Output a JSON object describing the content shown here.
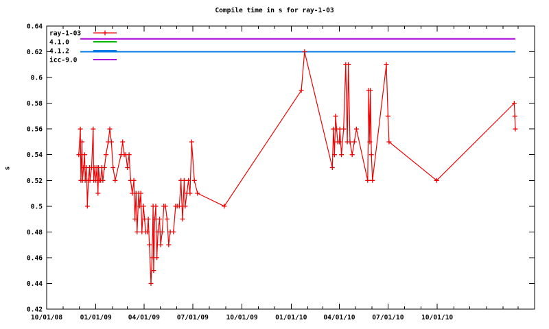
{
  "title": "Compile time in s for ray-1-03",
  "chart_data": {
    "type": "line",
    "title": "Compile time in s for ray-1-03",
    "xlabel": "",
    "ylabel": "s",
    "ylim": [
      0.42,
      0.64
    ],
    "y_tick_step": 0.02,
    "y_ticks": [
      {
        "value": 0.64,
        "label": "0.64"
      },
      {
        "value": 0.62,
        "label": "0.62"
      },
      {
        "value": 0.6,
        "label": "0.6"
      },
      {
        "value": 0.58,
        "label": "0.58"
      },
      {
        "value": 0.56,
        "label": "0.56"
      },
      {
        "value": 0.54,
        "label": "0.54"
      },
      {
        "value": 0.52,
        "label": "0.52"
      },
      {
        "value": 0.5,
        "label": "0.5"
      },
      {
        "value": 0.48,
        "label": "0.48"
      },
      {
        "value": 0.46,
        "label": "0.46"
      },
      {
        "value": 0.44,
        "label": "0.44"
      },
      {
        "value": 0.42,
        "label": "0.42"
      }
    ],
    "x_axis_unit": "days since first labeled tick (10/01/08)",
    "x_range_days": 912,
    "x_major_ticks": [
      {
        "day": 0,
        "label": "10/01/08"
      },
      {
        "day": 92,
        "label": "01/01/09"
      },
      {
        "day": 182,
        "label": "04/01/09"
      },
      {
        "day": 273,
        "label": "07/01/09"
      },
      {
        "day": 365,
        "label": "10/01/09"
      },
      {
        "day": 457,
        "label": "01/01/10"
      },
      {
        "day": 547,
        "label": "04/01/10"
      },
      {
        "day": 638,
        "label": "07/01/10"
      },
      {
        "day": 730,
        "label": "10/01/10"
      }
    ],
    "x_minor_tick_days": [
      31,
      61,
      123,
      151,
      212,
      243,
      304,
      335,
      396,
      426,
      488,
      516,
      577,
      608,
      669,
      700,
      761,
      791,
      822,
      853,
      881
    ],
    "grid": false,
    "legend_position": "top-left",
    "axis_color": "#000000",
    "background_color": "#ffffff",
    "series": [
      {
        "name": "4.1.0",
        "color": "#00b800",
        "style": "line",
        "points": [
          [
            63,
            0.62
          ],
          [
            876,
            0.62
          ]
        ]
      },
      {
        "name": "4.1.2",
        "color": "#0078e8",
        "style": "line",
        "points": [
          [
            63,
            0.62
          ],
          [
            876,
            0.62
          ]
        ]
      },
      {
        "name": "icc-9.0",
        "color": "#a800d8",
        "style": "line",
        "points": [
          [
            63,
            0.63
          ],
          [
            876,
            0.63
          ]
        ]
      },
      {
        "name": "ray-1-03",
        "color": "#ee0000",
        "style": "linespoints",
        "marker": "plus",
        "points": [
          [
            60,
            0.54
          ],
          [
            63,
            0.56
          ],
          [
            64,
            0.52
          ],
          [
            66,
            0.55
          ],
          [
            67,
            0.52
          ],
          [
            69,
            0.53
          ],
          [
            71,
            0.54
          ],
          [
            72,
            0.52
          ],
          [
            74,
            0.53
          ],
          [
            75,
            0.52
          ],
          [
            76,
            0.5
          ],
          [
            78,
            0.52
          ],
          [
            80,
            0.53
          ],
          [
            81,
            0.52
          ],
          [
            84,
            0.53
          ],
          [
            87,
            0.56
          ],
          [
            88,
            0.52
          ],
          [
            90,
            0.53
          ],
          [
            92,
            0.52
          ],
          [
            94,
            0.53
          ],
          [
            96,
            0.51
          ],
          [
            97,
            0.53
          ],
          [
            99,
            0.52
          ],
          [
            101,
            0.52
          ],
          [
            103,
            0.53
          ],
          [
            105,
            0.52
          ],
          [
            108,
            0.53
          ],
          [
            111,
            0.54
          ],
          [
            115,
            0.55
          ],
          [
            118,
            0.56
          ],
          [
            121,
            0.55
          ],
          [
            124,
            0.53
          ],
          [
            128,
            0.52
          ],
          [
            139,
            0.54
          ],
          [
            142,
            0.55
          ],
          [
            145,
            0.54
          ],
          [
            148,
            0.54
          ],
          [
            151,
            0.53
          ],
          [
            154,
            0.54
          ],
          [
            157,
            0.52
          ],
          [
            160,
            0.51
          ],
          [
            163,
            0.52
          ],
          [
            165,
            0.49
          ],
          [
            167,
            0.51
          ],
          [
            169,
            0.48
          ],
          [
            172,
            0.51
          ],
          [
            174,
            0.5
          ],
          [
            176,
            0.51
          ],
          [
            178,
            0.48
          ],
          [
            181,
            0.5
          ],
          [
            183,
            0.49
          ],
          [
            185,
            0.48
          ],
          [
            188,
            0.48
          ],
          [
            190,
            0.49
          ],
          [
            192,
            0.47
          ],
          [
            195,
            0.44
          ],
          [
            197,
            0.46
          ],
          [
            199,
            0.5
          ],
          [
            200,
            0.45
          ],
          [
            202,
            0.49
          ],
          [
            204,
            0.5
          ],
          [
            206,
            0.46
          ],
          [
            208,
            0.48
          ],
          [
            211,
            0.49
          ],
          [
            213,
            0.47
          ],
          [
            216,
            0.48
          ],
          [
            219,
            0.5
          ],
          [
            222,
            0.5
          ],
          [
            225,
            0.49
          ],
          [
            228,
            0.47
          ],
          [
            231,
            0.48
          ],
          [
            237,
            0.48
          ],
          [
            241,
            0.5
          ],
          [
            244,
            0.5
          ],
          [
            248,
            0.5
          ],
          [
            251,
            0.52
          ],
          [
            254,
            0.49
          ],
          [
            257,
            0.52
          ],
          [
            259,
            0.5
          ],
          [
            262,
            0.51
          ],
          [
            265,
            0.52
          ],
          [
            268,
            0.51
          ],
          [
            271,
            0.55
          ],
          [
            276,
            0.52
          ],
          [
            282,
            0.51
          ],
          [
            332,
            0.5
          ],
          [
            476,
            0.59
          ],
          [
            482,
            0.62
          ],
          [
            534,
            0.53
          ],
          [
            536,
            0.56
          ],
          [
            538,
            0.54
          ],
          [
            540,
            0.57
          ],
          [
            542,
            0.56
          ],
          [
            544,
            0.55
          ],
          [
            547,
            0.55
          ],
          [
            548,
            0.56
          ],
          [
            551,
            0.54
          ],
          [
            555,
            0.56
          ],
          [
            559,
            0.61
          ],
          [
            562,
            0.55
          ],
          [
            564,
            0.61
          ],
          [
            567,
            0.55
          ],
          [
            571,
            0.54
          ],
          [
            575,
            0.55
          ],
          [
            579,
            0.56
          ],
          [
            600,
            0.52
          ],
          [
            602,
            0.59
          ],
          [
            604,
            0.55
          ],
          [
            605,
            0.59
          ],
          [
            607,
            0.54
          ],
          [
            609,
            0.52
          ],
          [
            635,
            0.61
          ],
          [
            638,
            0.57
          ],
          [
            640,
            0.55
          ],
          [
            729,
            0.52
          ],
          [
            874,
            0.58
          ],
          [
            875,
            0.57
          ],
          [
            876,
            0.56
          ]
        ]
      }
    ],
    "legend_order": [
      "ray-1-03",
      "4.1.0",
      "4.1.2",
      "icc-9.0"
    ]
  }
}
